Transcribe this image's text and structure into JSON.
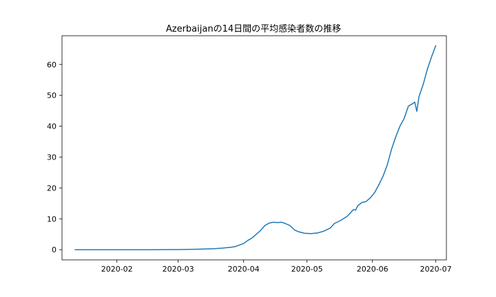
{
  "chart_data": {
    "type": "line",
    "title": "Azerbaijanの14日間の平均感染者数の推移",
    "xlabel": "",
    "ylabel": "",
    "x_axis": {
      "kind": "date",
      "range": [
        "2020-01-06",
        "2020-07-06"
      ],
      "ticks": [
        "2020-02-01",
        "2020-03-01",
        "2020-04-01",
        "2020-05-01",
        "2020-06-01",
        "2020-07-01"
      ],
      "tick_labels": [
        "2020-02",
        "2020-03",
        "2020-04",
        "2020-05",
        "2020-06",
        "2020-07"
      ]
    },
    "y_axis": {
      "range": [
        -3.3,
        69.3
      ],
      "ticks": [
        0,
        10,
        20,
        30,
        40,
        50,
        60
      ],
      "tick_labels": [
        "0",
        "10",
        "20",
        "30",
        "40",
        "50",
        "60"
      ]
    },
    "grid": false,
    "line_color": "#1f77b4",
    "series": [
      {
        "points": [
          [
            "2020-01-12",
            0
          ],
          [
            "2020-02-15",
            0
          ],
          [
            "2020-03-01",
            0.05
          ],
          [
            "2020-03-10",
            0.15
          ],
          [
            "2020-03-18",
            0.3
          ],
          [
            "2020-03-22",
            0.5
          ],
          [
            "2020-03-26",
            0.8
          ],
          [
            "2020-03-28",
            1.0
          ],
          [
            "2020-03-30",
            1.5
          ],
          [
            "2020-04-01",
            2.0
          ],
          [
            "2020-04-03",
            3.0
          ],
          [
            "2020-04-05",
            3.8
          ],
          [
            "2020-04-07",
            5.0
          ],
          [
            "2020-04-09",
            6.2
          ],
          [
            "2020-04-11",
            7.8
          ],
          [
            "2020-04-13",
            8.6
          ],
          [
            "2020-04-15",
            8.9
          ],
          [
            "2020-04-17",
            8.8
          ],
          [
            "2020-04-19",
            8.9
          ],
          [
            "2020-04-21",
            8.4
          ],
          [
            "2020-04-23",
            7.8
          ],
          [
            "2020-04-25",
            6.4
          ],
          [
            "2020-04-27",
            5.8
          ],
          [
            "2020-04-30",
            5.3
          ],
          [
            "2020-05-03",
            5.2
          ],
          [
            "2020-05-06",
            5.4
          ],
          [
            "2020-05-09",
            6.0
          ],
          [
            "2020-05-12",
            7.0
          ],
          [
            "2020-05-14",
            8.5
          ],
          [
            "2020-05-17",
            9.5
          ],
          [
            "2020-05-20",
            10.8
          ],
          [
            "2020-05-23",
            13.0
          ],
          [
            "2020-05-24",
            12.8
          ],
          [
            "2020-05-25",
            14.2
          ],
          [
            "2020-05-27",
            15.3
          ],
          [
            "2020-05-29",
            15.6
          ],
          [
            "2020-05-31",
            16.8
          ],
          [
            "2020-06-02",
            18.5
          ],
          [
            "2020-06-04",
            21.0
          ],
          [
            "2020-06-06",
            23.8
          ],
          [
            "2020-06-08",
            27.5
          ],
          [
            "2020-06-10",
            32.5
          ],
          [
            "2020-06-12",
            36.5
          ],
          [
            "2020-06-14",
            40.0
          ],
          [
            "2020-06-16",
            42.5
          ],
          [
            "2020-06-18",
            46.5
          ],
          [
            "2020-06-20",
            47.3
          ],
          [
            "2020-06-21",
            47.8
          ],
          [
            "2020-06-22",
            44.8
          ],
          [
            "2020-06-23",
            49.5
          ],
          [
            "2020-06-25",
            53.5
          ],
          [
            "2020-06-27",
            58.5
          ],
          [
            "2020-06-29",
            62.5
          ],
          [
            "2020-07-01",
            66.2
          ]
        ]
      }
    ]
  }
}
